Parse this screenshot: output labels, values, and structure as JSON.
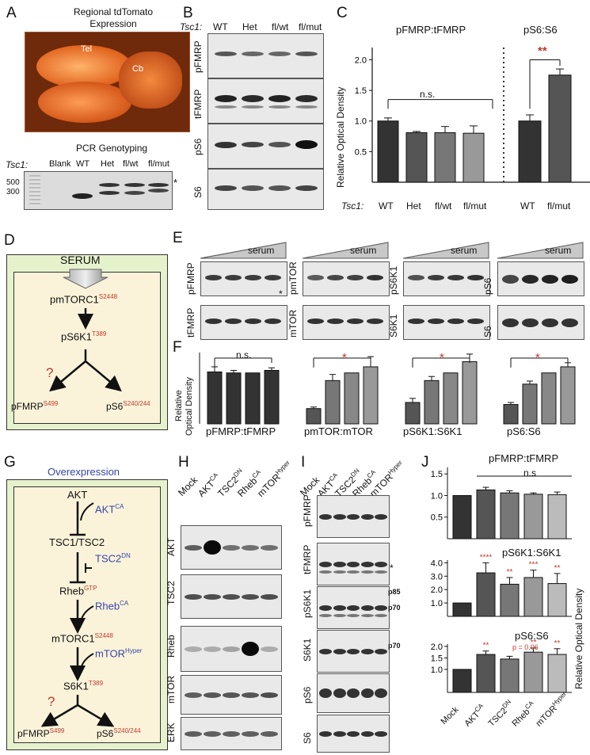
{
  "panelA": {
    "letter": "A",
    "title_line1": "Regional tdTomato",
    "title_line2": "Expression",
    "region_tel": "Tel",
    "region_cb": "Cb",
    "pcr_title": "PCR Genotyping",
    "gene": "Tsc1",
    "lanes": [
      "Blank",
      "WT",
      "Het",
      "fl/wt",
      "fl/mut"
    ],
    "size_500": "500",
    "size_300": "300",
    "asterisk": "*"
  },
  "panelB": {
    "letter": "B",
    "gene": "Tsc1",
    "lanes": [
      "WT",
      "Het",
      "fl/wt",
      "fl/mut"
    ],
    "rows": [
      "pFMRP",
      "tFMRP",
      "pS6",
      "S6"
    ]
  },
  "panelC": {
    "letter": "C",
    "title_left": "pFMRP:tFMRP",
    "title_right": "pS6:S6",
    "ylabel": "Relative Optical Density",
    "yticks": [
      "0.5",
      "1.0",
      "1.5",
      "2.0"
    ],
    "gene": "Tsc1",
    "ns": "n.s.",
    "sig": "**"
  },
  "panelD": {
    "letter": "D",
    "serum": "SERUM",
    "node1": "pmTORC1",
    "node1_sup": "S2448",
    "node2": "pS6K1",
    "node2_sup": "T389",
    "question": "?",
    "left": "pFMRP",
    "left_sup": "S499",
    "right": "pS6",
    "right_sup": "S240/244"
  },
  "panelE": {
    "letter": "E",
    "serum": "serum",
    "blots": [
      {
        "top": "pFMRP",
        "bottom": "tFMRP"
      },
      {
        "top": "pmTOR",
        "bottom": "mTOR"
      },
      {
        "top": "pS6K1",
        "bottom": "S6K1"
      },
      {
        "top": "pS6",
        "bottom": "S6"
      }
    ],
    "asterisk": "*"
  },
  "panelF": {
    "letter": "F",
    "ylabel_line1": "Relative",
    "ylabel_line2": "Optical Density",
    "groups": [
      "pFMRP:tFMRP",
      "pmTOR:mTOR",
      "pS6K1:S6K1",
      "pS6:S6"
    ],
    "ns": "n.s.",
    "sig": "*"
  },
  "panelG": {
    "letter": "G",
    "title": "Overexpression",
    "akt": "AKT",
    "akt_ca": "AKT",
    "akt_ca_sup": "CA",
    "tsc": "TSC1/TSC2",
    "tsc_dn": "TSC2",
    "tsc_dn_sup": "DN",
    "rheb": "Rheb",
    "rheb_sup": "GTP",
    "rheb_ca": "Rheb",
    "rheb_ca_sup": "CA",
    "mtorc1": "mTORC1",
    "mtorc1_sup": "S2448",
    "mtor_hyper": "mTOR",
    "mtor_hyper_sup": "Hyper",
    "s6k1": "S6K1",
    "s6k1_sup": "T389",
    "question": "?",
    "left": "pFMRP",
    "left_sup": "S499",
    "right": "pS6",
    "right_sup": "S240/244"
  },
  "panelH": {
    "letter": "H",
    "lanes": [
      {
        "base": "Mock",
        "sup": ""
      },
      {
        "base": "AKT",
        "sup": "CA"
      },
      {
        "base": "TSC2",
        "sup": "DN"
      },
      {
        "base": "Rheb",
        "sup": "CA"
      },
      {
        "base": "mTOR",
        "sup": "Hyper"
      }
    ],
    "rows": [
      "AKT",
      "TSC2",
      "Rheb",
      "mTOR",
      "ERK"
    ]
  },
  "panelI": {
    "letter": "I",
    "lanes": [
      {
        "base": "Mock",
        "sup": ""
      },
      {
        "base": "AKT",
        "sup": "CA"
      },
      {
        "base": "TSC2",
        "sup": "DN"
      },
      {
        "base": "Rheb",
        "sup": "CA"
      },
      {
        "base": "mTOR",
        "sup": "Hyper"
      }
    ],
    "rows": [
      "pFMRP",
      "tFMRP",
      "pS6K1",
      "S6K1",
      "pS6",
      "S6"
    ],
    "p85": "p85",
    "p70": "p70",
    "p70b": "p70",
    "asterisk": "*"
  },
  "panelJ": {
    "letter": "J",
    "title1": "pFMRP:tFMRP",
    "title2": "pS6K1:S6K1",
    "title3": "pS6:S6",
    "ns": "n.s",
    "ylabel": "Relative Optical Density",
    "pval": "p = 0.06",
    "sig2": [
      "",
      "****",
      "**",
      "***",
      "**"
    ],
    "sig3": [
      "",
      "**",
      "",
      "**",
      "**"
    ]
  },
  "chart_data": [
    {
      "type": "bar",
      "name_key": "C-left",
      "title": "pFMRP:tFMRP",
      "ylabel": "Relative Optical Density",
      "categories": [
        "WT",
        "Het",
        "fl/wt",
        "fl/mut"
      ],
      "values": [
        1.0,
        0.81,
        0.81,
        0.8
      ],
      "errors": [
        0.05,
        0.02,
        0.1,
        0.12
      ],
      "ylim": [
        0,
        2.2
      ]
    },
    {
      "type": "bar",
      "name_key": "C-right",
      "title": "pS6:S6",
      "categories": [
        "WT",
        "fl/mut"
      ],
      "values": [
        1.0,
        1.75
      ],
      "errors": [
        0.1,
        0.1
      ],
      "ylim": [
        0,
        2.2
      ]
    },
    {
      "type": "bar",
      "name_key": "F",
      "ylabel": "Relative Optical Density",
      "groups": [
        {
          "label": "pFMRP:tFMRP",
          "values": [
            1.02,
            1.0,
            1.0,
            1.05
          ],
          "errors": [
            0.1,
            0.05,
            0.0,
            0.05
          ]
        },
        {
          "label": "pmTOR:mTOR",
          "values": [
            0.3,
            0.85,
            1.0,
            1.12
          ],
          "errors": [
            0.03,
            0.12,
            0.0,
            0.2
          ]
        },
        {
          "label": "pS6K1:S6K1",
          "values": [
            0.42,
            0.85,
            1.0,
            1.22
          ],
          "errors": [
            0.08,
            0.08,
            0.0,
            0.15
          ]
        },
        {
          "label": "pS6:S6",
          "values": [
            0.38,
            0.78,
            1.0,
            1.12
          ],
          "errors": [
            0.04,
            0.06,
            0.0,
            0.08
          ]
        }
      ],
      "ylim": [
        0,
        1.4
      ]
    },
    {
      "type": "bar",
      "name_key": "J1",
      "title": "pFMRP:tFMRP",
      "categories": [
        "Mock",
        "AKT CA",
        "TSC2 DN",
        "Rheb CA",
        "mTOR Hyper"
      ],
      "values": [
        1.0,
        1.13,
        1.06,
        1.03,
        1.02
      ],
      "errors": [
        0.0,
        0.06,
        0.05,
        0.03,
        0.06
      ],
      "yticks": [
        0.5,
        1.0,
        1.5
      ],
      "ylim": [
        0,
        1.65
      ]
    },
    {
      "type": "bar",
      "name_key": "J2",
      "title": "pS6K1:S6K1",
      "ylabel": "Relative Optical Density",
      "categories": [
        "Mock",
        "AKT CA",
        "TSC2 DN",
        "Rheb CA",
        "mTOR Hyper"
      ],
      "values": [
        1.0,
        3.25,
        2.4,
        2.9,
        2.45
      ],
      "errors": [
        0.0,
        0.75,
        0.5,
        0.55,
        0.75
      ],
      "yticks": [
        1.0,
        2.0,
        3.0,
        4.0
      ],
      "ylim": [
        0,
        4.2
      ]
    },
    {
      "type": "bar",
      "name_key": "J3",
      "title": "pS6:S6",
      "categories": [
        "Mock",
        "AKT CA",
        "TSC2 DN",
        "Rheb CA",
        "mTOR Hyper"
      ],
      "values": [
        1.0,
        1.65,
        1.45,
        1.75,
        1.65
      ],
      "errors": [
        0.0,
        0.15,
        0.12,
        0.18,
        0.25
      ],
      "yticks": [
        1.0,
        1.5,
        2.0
      ],
      "ylim": [
        0,
        2.1
      ]
    }
  ]
}
